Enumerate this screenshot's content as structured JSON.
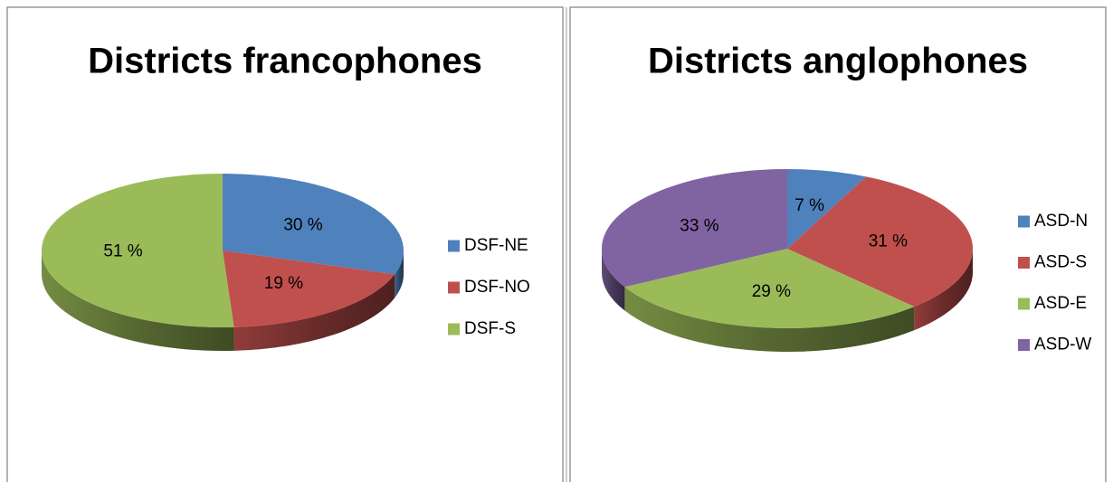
{
  "chart_data": [
    {
      "type": "pie",
      "title": "Districts francophones",
      "categories": [
        "DSF-NE",
        "DSF-NO",
        "DSF-S"
      ],
      "values": [
        30,
        19,
        51
      ],
      "value_labels": [
        "30 %",
        "19 %",
        "51 %"
      ],
      "colors": [
        "#4f81bd",
        "#c0504d",
        "#9bbb59"
      ],
      "legend": "right"
    },
    {
      "type": "pie",
      "title": "Districts anglophones",
      "categories": [
        "ASD-N",
        "ASD-S",
        "ASD-E",
        "ASD-W"
      ],
      "values": [
        7,
        31,
        29,
        33
      ],
      "value_labels": [
        "7 %",
        "31 %",
        "29 %",
        "33 %"
      ],
      "colors": [
        "#4f81bd",
        "#c0504d",
        "#9bbb59",
        "#8064a2"
      ],
      "legend": "right"
    }
  ]
}
